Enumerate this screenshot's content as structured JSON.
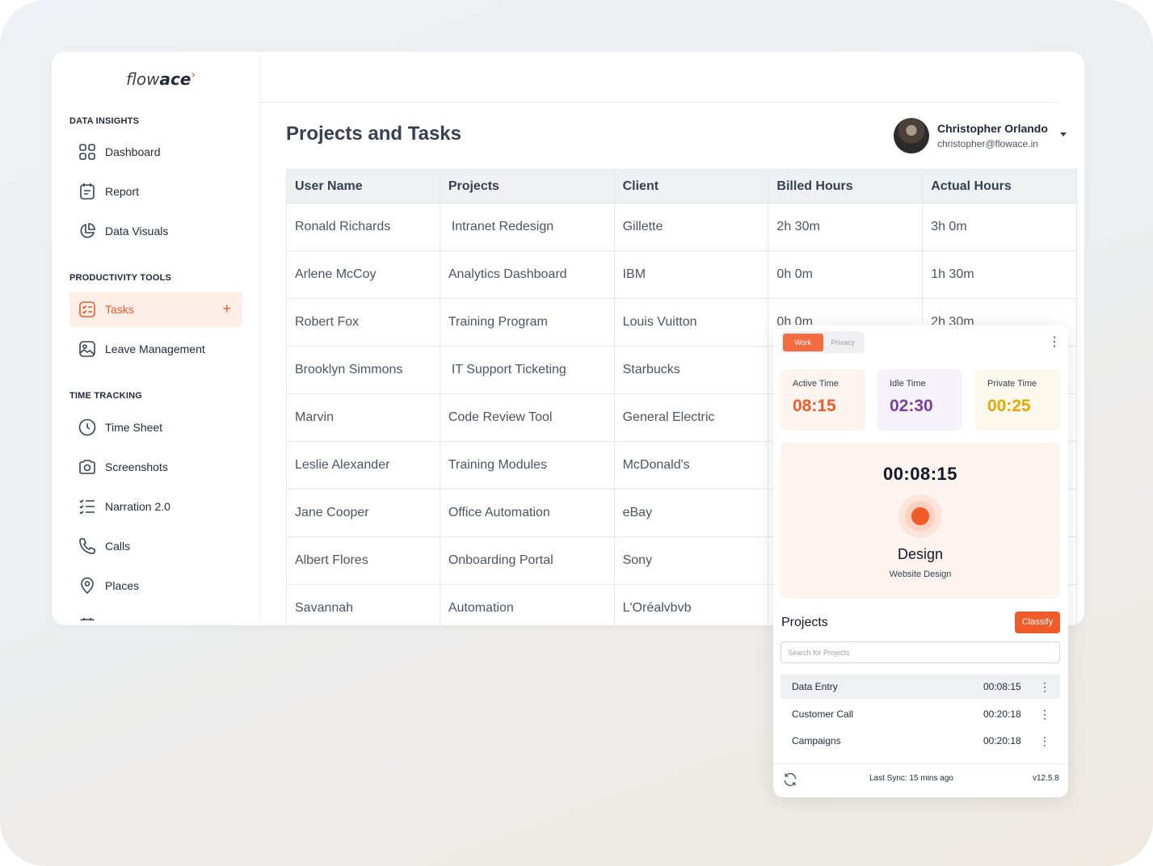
{
  "brand": {
    "logo_light": "flow",
    "logo_bold": "ace"
  },
  "sidebar": {
    "sections": [
      {
        "title": "DATA INSIGHTS",
        "items": [
          "Dashboard",
          "Report",
          "Data Visuals"
        ]
      },
      {
        "title": "PRODUCTIVITY TOOLS",
        "items": [
          "Tasks",
          "Leave Management"
        ]
      },
      {
        "title": "TIME TRACKING",
        "items": [
          "Time Sheet",
          "Screenshots",
          "Narration 2.0",
          "Calls",
          "Places"
        ]
      }
    ],
    "active_item": "Tasks",
    "add_symbol": "+"
  },
  "page": {
    "title": "Projects and Tasks"
  },
  "user": {
    "name": "Christopher Orlando",
    "email": "christopher@flowace.in"
  },
  "table": {
    "columns": [
      "User Name",
      "Projects",
      "Client",
      "Billed Hours",
      "Actual Hours"
    ],
    "rows": [
      [
        "Ronald Richards",
        "Intranet Redesign",
        "Gillette",
        "2h 30m",
        "3h 0m"
      ],
      [
        "Arlene McCoy",
        "Analytics Dashboard",
        "IBM",
        "0h 0m",
        "1h 30m"
      ],
      [
        "Robert Fox",
        "Training Program",
        "Louis Vuitton",
        "0h 0m",
        "2h 30m"
      ],
      [
        "Brooklyn Simmons",
        "IT Support Ticketing",
        "Starbucks",
        "",
        ""
      ],
      [
        "Marvin",
        "Code Review Tool",
        "General Electric",
        "",
        ""
      ],
      [
        "Leslie Alexander",
        "Training Modules",
        "McDonald's",
        "",
        ""
      ],
      [
        "Jane Cooper",
        "Office Automation",
        "eBay",
        "",
        ""
      ],
      [
        "Albert Flores",
        "Onboarding Portal",
        "Sony",
        "",
        ""
      ],
      [
        "Savannah",
        "Automation",
        "L'Oréalvbvb",
        "",
        ""
      ]
    ]
  },
  "widget": {
    "toggle": {
      "work": "Work",
      "privacy": "Privacy",
      "selected": "Work"
    },
    "stats": [
      {
        "label": "Active Time",
        "value": "08:15",
        "color": "#f15a29",
        "bg": "#fdf3ef"
      },
      {
        "label": "Idle Time",
        "value": "02:30",
        "color": "#7b3fa0",
        "bg": "#f5f2fa"
      },
      {
        "label": "Private Time",
        "value": "00:25",
        "color": "#e6a800",
        "bg": "#fdf8ec"
      }
    ],
    "timer": {
      "value": "00:08:15",
      "project": "Design",
      "task": "Website Design"
    },
    "projects_title": "Projects",
    "classify_label": "Classify",
    "search_placeholder": "Search for Projects",
    "projects": [
      {
        "name": "Data Entry",
        "time": "00:08:15"
      },
      {
        "name": "Customer Call",
        "time": "00:20:18"
      },
      {
        "name": "Campaigns",
        "time": "00:20:18"
      }
    ],
    "last_sync": "Last Sync: 15 mins ago",
    "version": "v12.5.8"
  },
  "colors": {
    "accent": "#f15a29",
    "accent_bg": "#fdeee7"
  }
}
